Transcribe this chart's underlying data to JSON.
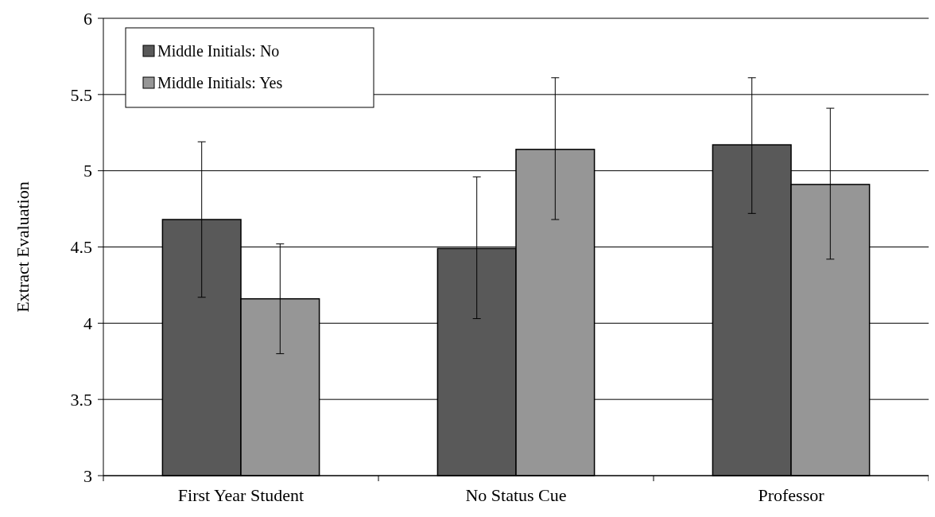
{
  "chart_data": {
    "type": "bar",
    "ylabel": "Extract Evaluation",
    "categories": [
      "First Year Student",
      "No Status Cue",
      "Professor"
    ],
    "series": [
      {
        "name": "Middle Initials: No",
        "color": "#595959",
        "values": [
          4.68,
          4.49,
          5.17
        ],
        "errors": [
          [
            4.17,
            5.19
          ],
          [
            4.03,
            4.96
          ],
          [
            4.72,
            5.61
          ]
        ]
      },
      {
        "name": "Middle Initials: Yes",
        "color": "#969696",
        "values": [
          4.16,
          5.14,
          4.91
        ],
        "errors": [
          [
            3.8,
            4.52
          ],
          [
            4.68,
            5.61
          ],
          [
            4.42,
            5.41
          ]
        ]
      }
    ],
    "ylim": [
      3,
      6
    ],
    "yticks": [
      3,
      3.5,
      4,
      4.5,
      5,
      5.5,
      6
    ],
    "grid": "y",
    "legend": "top left"
  }
}
